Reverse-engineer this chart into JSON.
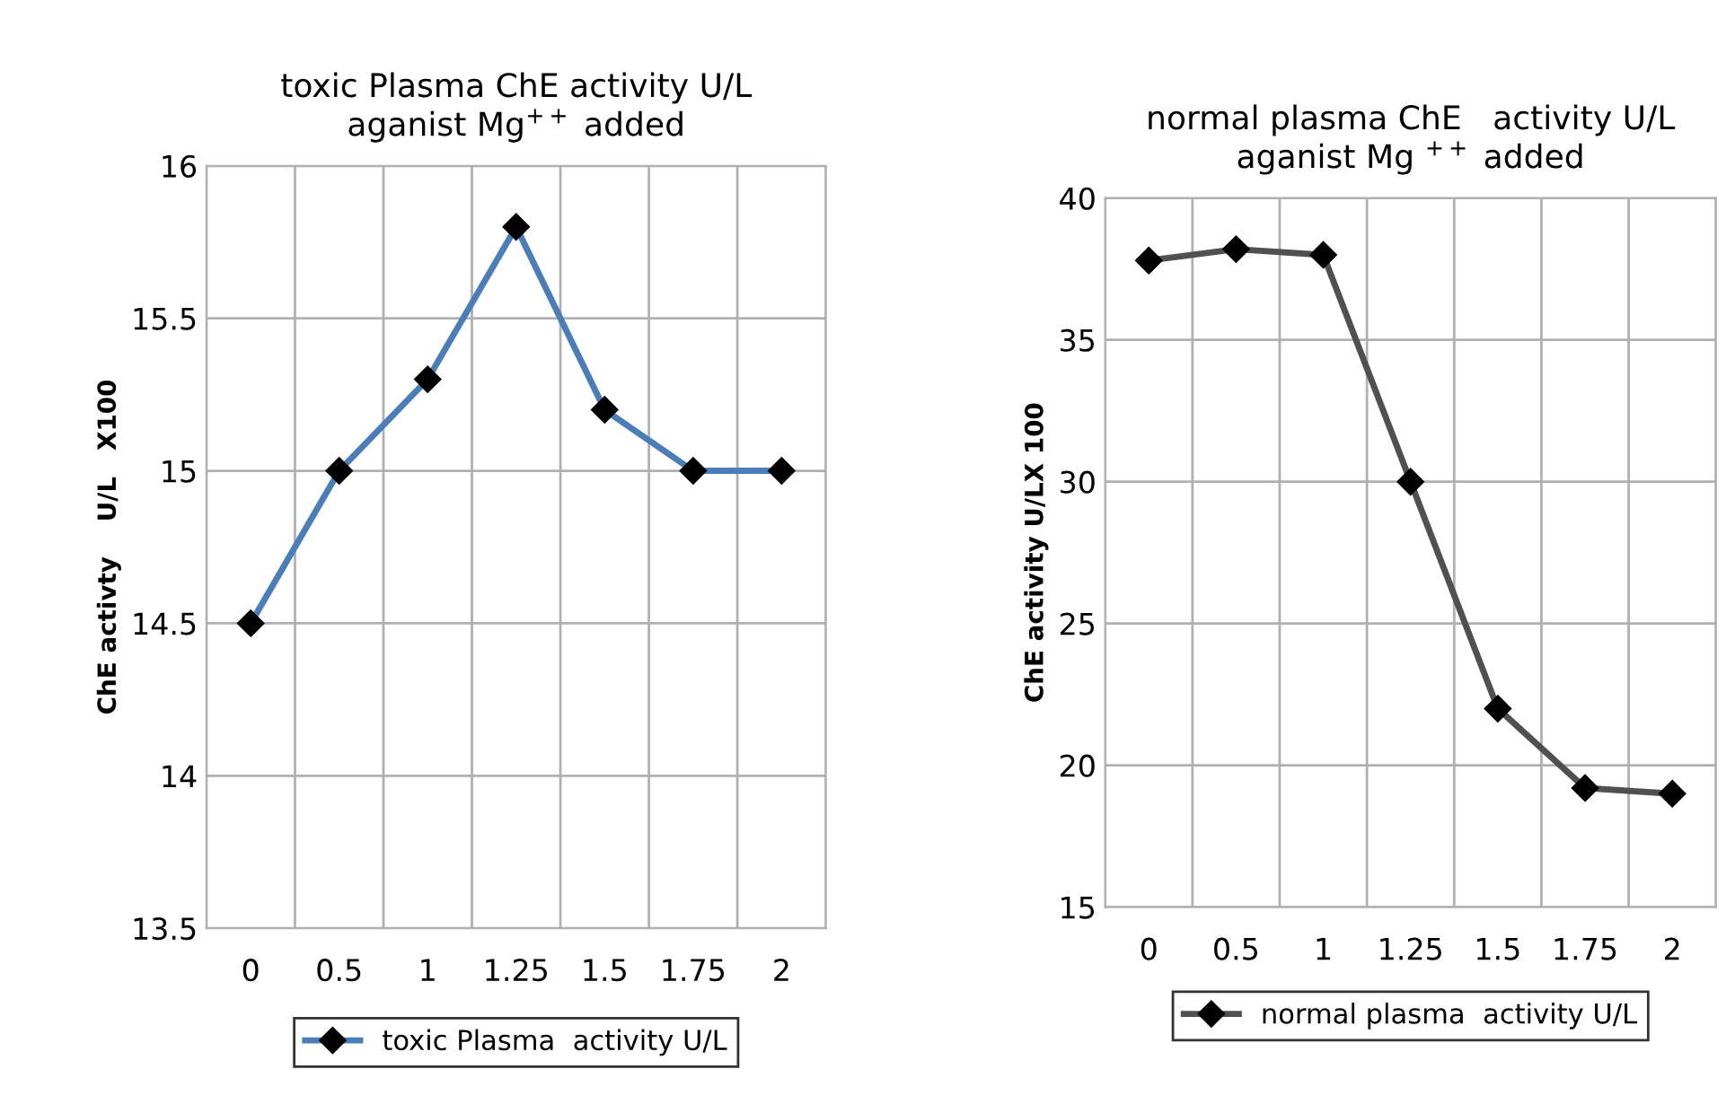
{
  "chart_data": [
    {
      "type": "line",
      "title": "toxic Plasma ChE activity U/L\naganist Mg$^{++}$ added",
      "ylabel": "ChE activty    U/L   X100",
      "categories": [
        "0",
        "0.5",
        "1",
        "1.25",
        "1.5",
        "1.75",
        "2"
      ],
      "ylim": [
        13.5,
        16
      ],
      "yticks": [
        13.5,
        14,
        14.5,
        15,
        15.5,
        16
      ],
      "grid": true,
      "legend": "bottom",
      "marker": "diamond",
      "line_style": "solid",
      "series": [
        {
          "name": "toxic Plasma  activity U/L",
          "color": "#4a7ebb",
          "values": [
            14.5,
            15,
            15.3,
            15.8,
            15.2,
            15,
            15
          ]
        }
      ]
    },
    {
      "type": "line",
      "title": "normal plasma ChE   activity U/L\naganist Mg $^{++}$ added",
      "ylabel": "ChE activity U/LX 100",
      "categories": [
        "0",
        "0.5",
        "1",
        "1.25",
        "1.5",
        "1.75",
        "2"
      ],
      "ylim": [
        15,
        40
      ],
      "yticks": [
        15,
        20,
        25,
        30,
        35,
        40
      ],
      "grid": true,
      "legend": "bottom",
      "marker": "diamond",
      "line_style": "solid",
      "series": [
        {
          "name": "normal plasma  activity U/L",
          "color": "#505050",
          "values": [
            37.8,
            38.2,
            38,
            30,
            22,
            19.2,
            19
          ]
        }
      ]
    }
  ]
}
